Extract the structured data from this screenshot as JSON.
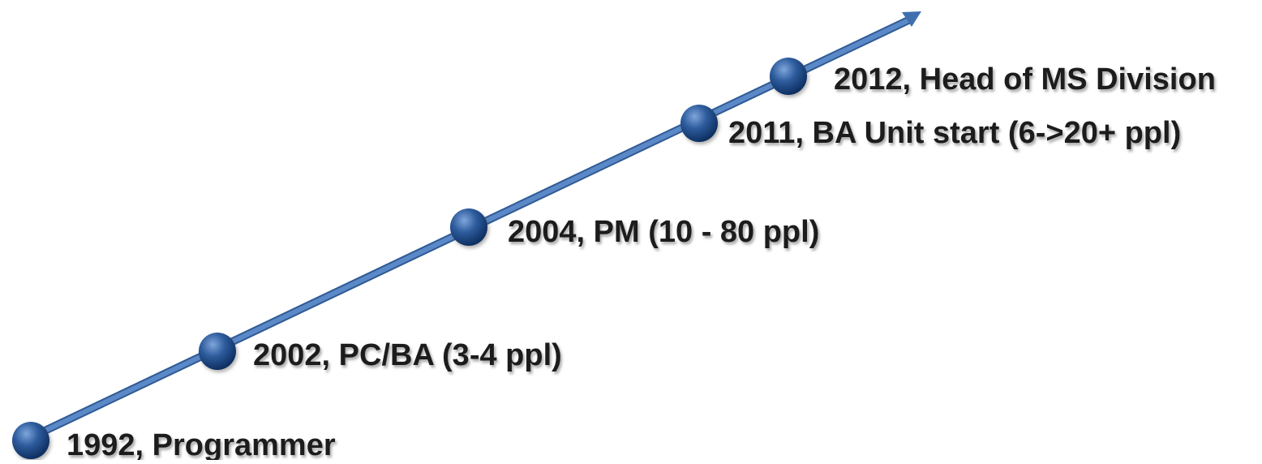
{
  "timeline": {
    "milestones": [
      {
        "label": "1992, Programmer"
      },
      {
        "label": "2002, PC/BA (3-4 ppl)"
      },
      {
        "label": "2004, PM (10 - 80 ppl)"
      },
      {
        "label": "2011, BA Unit start (6->20+ ppl)"
      },
      {
        "label": "2012, Head of MS Division"
      }
    ]
  },
  "colors": {
    "arrow": "#4a78b8",
    "arrow_edge": "#2f5a94",
    "dot_light": "#4f7fc0",
    "dot_dark": "#0c2d5e",
    "text": "#1b1b1b",
    "text_shadow": "#9a9a9a"
  }
}
